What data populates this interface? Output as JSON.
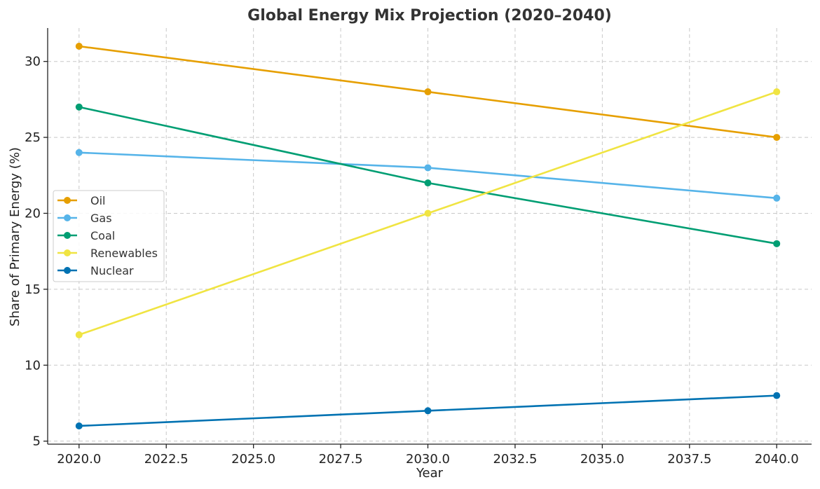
{
  "chart_data": {
    "type": "line",
    "title": "Global Energy Mix Projection (2020–2040)",
    "xlabel": "Year",
    "ylabel": "Share of Primary Energy (%)",
    "xlim": [
      2019.1,
      2041.0
    ],
    "ylim": [
      4.8,
      32.2
    ],
    "x_ticks": [
      2020,
      2022.5,
      2025,
      2027.5,
      2030,
      2032.5,
      2035,
      2037.5,
      2040
    ],
    "x_tick_labels": [
      "2020.0",
      "2022.5",
      "2025.0",
      "2027.5",
      "2030.0",
      "2032.5",
      "2035.0",
      "2037.5",
      "2040.0"
    ],
    "y_ticks": [
      5,
      10,
      15,
      20,
      25,
      30
    ],
    "y_tick_labels": [
      "5",
      "10",
      "15",
      "20",
      "25",
      "30"
    ],
    "grid": true,
    "legend_position": "center-left",
    "x": [
      2020,
      2030,
      2040
    ],
    "series": [
      {
        "name": "Oil",
        "values": [
          31,
          28,
          25
        ],
        "color": "#E69F00"
      },
      {
        "name": "Gas",
        "values": [
          24,
          23,
          21
        ],
        "color": "#56B4E9"
      },
      {
        "name": "Coal",
        "values": [
          27,
          22,
          18
        ],
        "color": "#009E73"
      },
      {
        "name": "Renewables",
        "values": [
          12,
          20,
          28
        ],
        "color": "#F0E442"
      },
      {
        "name": "Nuclear",
        "values": [
          6,
          7,
          8
        ],
        "color": "#0072B2"
      }
    ]
  }
}
